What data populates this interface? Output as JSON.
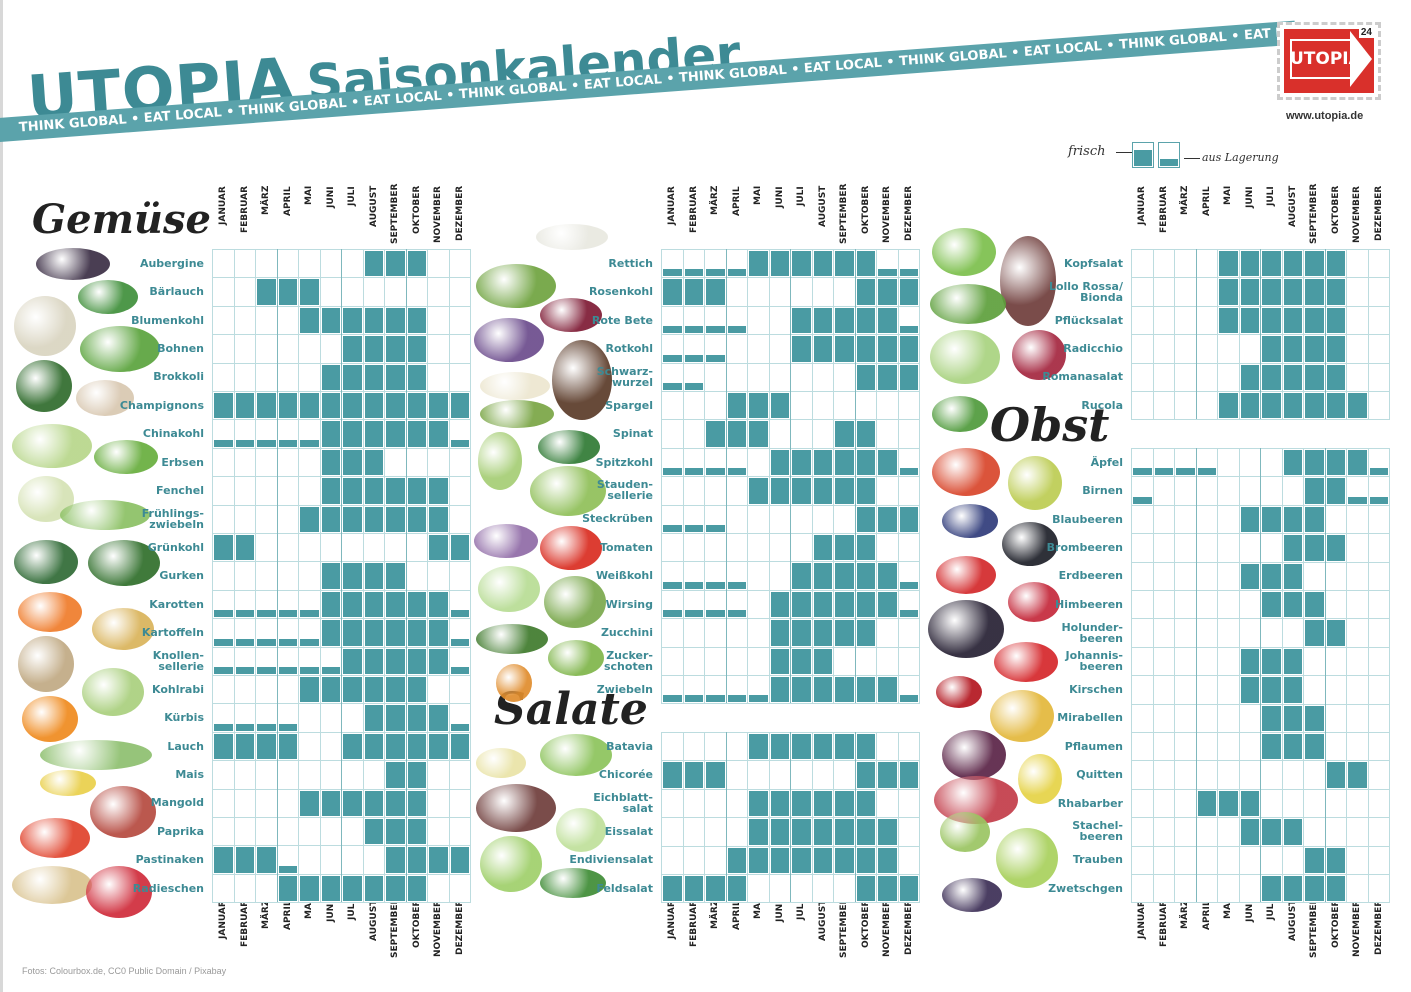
{
  "header": {
    "brand": "UTOPIA",
    "title": "Saisonkalender",
    "tagline": "THINK GLOBAL • EAT LOCAL • THINK GLOBAL • EAT LOCAL • THINK GLOBAL • EAT LOCAL • THINK GLOBAL • EAT LOCAL • THINK GLOBAL • EAT LOCAL • THINK GLOBAL • EAT LOCAL • THINK GLOBAL • EAT LOCAL • THINK GLOBAL • EAT LOCAL •",
    "stamp_label": "UTOPIA",
    "stamp_number": "24",
    "website": "www.utopia.de"
  },
  "legend": {
    "fresh": "frisch",
    "storage": "aus Lagerung"
  },
  "months": [
    "JANUAR",
    "FEBRUAR",
    "MÄRZ",
    "APRIL",
    "MAI",
    "JUNI",
    "JULI",
    "AUGUST",
    "SEPTEMBER",
    "OKTOBER",
    "NOVEMBER",
    "DEZEMBER"
  ],
  "sections": {
    "gemuese": {
      "title": "Gemüse",
      "items": [
        {
          "name": "Aubergine",
          "cells": [
            0,
            0,
            0,
            0,
            0,
            0,
            0,
            2,
            2,
            2,
            0,
            0
          ]
        },
        {
          "name": "Bärlauch",
          "cells": [
            0,
            0,
            2,
            2,
            2,
            0,
            0,
            0,
            0,
            0,
            0,
            0
          ]
        },
        {
          "name": "Blumenkohl",
          "cells": [
            0,
            0,
            0,
            0,
            2,
            2,
            2,
            2,
            2,
            2,
            0,
            0
          ]
        },
        {
          "name": "Bohnen",
          "cells": [
            0,
            0,
            0,
            0,
            0,
            0,
            2,
            2,
            2,
            2,
            0,
            0
          ]
        },
        {
          "name": "Brokkoli",
          "cells": [
            0,
            0,
            0,
            0,
            0,
            2,
            2,
            2,
            2,
            2,
            0,
            0
          ]
        },
        {
          "name": "Champignons",
          "cells": [
            2,
            2,
            2,
            2,
            2,
            2,
            2,
            2,
            2,
            2,
            2,
            2
          ]
        },
        {
          "name": "Chinakohl",
          "cells": [
            1,
            1,
            1,
            1,
            1,
            2,
            2,
            2,
            2,
            2,
            2,
            1
          ]
        },
        {
          "name": "Erbsen",
          "cells": [
            0,
            0,
            0,
            0,
            0,
            2,
            2,
            2,
            0,
            0,
            0,
            0
          ]
        },
        {
          "name": "Fenchel",
          "cells": [
            0,
            0,
            0,
            0,
            0,
            2,
            2,
            2,
            2,
            2,
            2,
            0
          ]
        },
        {
          "name": "Frühlings-\nzwiebeln",
          "cells": [
            0,
            0,
            0,
            0,
            2,
            2,
            2,
            2,
            2,
            2,
            2,
            0
          ]
        },
        {
          "name": "Grünkohl",
          "cells": [
            2,
            2,
            0,
            0,
            0,
            0,
            0,
            0,
            0,
            0,
            2,
            2
          ]
        },
        {
          "name": "Gurken",
          "cells": [
            0,
            0,
            0,
            0,
            0,
            2,
            2,
            2,
            2,
            0,
            0,
            0
          ]
        },
        {
          "name": "Karotten",
          "cells": [
            1,
            1,
            1,
            1,
            1,
            2,
            2,
            2,
            2,
            2,
            2,
            1
          ]
        },
        {
          "name": "Kartoffeln",
          "cells": [
            1,
            1,
            1,
            1,
            1,
            2,
            2,
            2,
            2,
            2,
            2,
            1
          ]
        },
        {
          "name": "Knollen-\nsellerie",
          "cells": [
            1,
            1,
            1,
            1,
            1,
            1,
            2,
            2,
            2,
            2,
            2,
            1
          ]
        },
        {
          "name": "Kohlrabi",
          "cells": [
            0,
            0,
            0,
            0,
            2,
            2,
            2,
            2,
            2,
            2,
            0,
            0
          ]
        },
        {
          "name": "Kürbis",
          "cells": [
            1,
            1,
            1,
            1,
            0,
            0,
            0,
            2,
            2,
            2,
            2,
            1
          ]
        },
        {
          "name": "Lauch",
          "cells": [
            2,
            2,
            2,
            2,
            0,
            0,
            2,
            2,
            2,
            2,
            2,
            2
          ]
        },
        {
          "name": "Mais",
          "cells": [
            0,
            0,
            0,
            0,
            0,
            0,
            0,
            0,
            2,
            2,
            0,
            0
          ]
        },
        {
          "name": "Mangold",
          "cells": [
            0,
            0,
            0,
            0,
            2,
            2,
            2,
            2,
            2,
            2,
            0,
            0
          ]
        },
        {
          "name": "Paprika",
          "cells": [
            0,
            0,
            0,
            0,
            0,
            0,
            0,
            2,
            2,
            2,
            0,
            0
          ]
        },
        {
          "name": "Pastinaken",
          "cells": [
            2,
            2,
            2,
            1,
            0,
            0,
            0,
            0,
            2,
            2,
            2,
            2
          ]
        },
        {
          "name": "Radieschen",
          "cells": [
            0,
            0,
            0,
            2,
            2,
            2,
            2,
            2,
            2,
            2,
            0,
            0
          ]
        }
      ]
    },
    "mitte": {
      "items": [
        {
          "name": "Rettich",
          "cells": [
            1,
            1,
            1,
            1,
            2,
            2,
            2,
            2,
            2,
            2,
            1,
            1
          ]
        },
        {
          "name": "Rosenkohl",
          "cells": [
            2,
            2,
            2,
            0,
            0,
            0,
            0,
            0,
            0,
            2,
            2,
            2
          ]
        },
        {
          "name": "Rote Bete",
          "cells": [
            1,
            1,
            1,
            1,
            0,
            0,
            2,
            2,
            2,
            2,
            2,
            1
          ]
        },
        {
          "name": "Rotkohl",
          "cells": [
            1,
            1,
            1,
            0,
            0,
            0,
            2,
            2,
            2,
            2,
            2,
            2
          ]
        },
        {
          "name": "Schwarz-\nwurzel",
          "cells": [
            1,
            1,
            0,
            0,
            0,
            0,
            0,
            0,
            0,
            2,
            2,
            2
          ]
        },
        {
          "name": "Spargel",
          "cells": [
            0,
            0,
            0,
            2,
            2,
            2,
            0,
            0,
            0,
            0,
            0,
            0
          ]
        },
        {
          "name": "Spinat",
          "cells": [
            0,
            0,
            2,
            2,
            2,
            0,
            0,
            0,
            2,
            2,
            0,
            0
          ]
        },
        {
          "name": "Spitzkohl",
          "cells": [
            1,
            1,
            1,
            1,
            0,
            2,
            2,
            2,
            2,
            2,
            2,
            1
          ]
        },
        {
          "name": "Stauden-\nsellerie",
          "cells": [
            0,
            0,
            0,
            0,
            2,
            2,
            2,
            2,
            2,
            2,
            0,
            0
          ]
        },
        {
          "name": "Steckrüben",
          "cells": [
            1,
            1,
            1,
            0,
            0,
            0,
            0,
            0,
            0,
            2,
            2,
            2
          ]
        },
        {
          "name": "Tomaten",
          "cells": [
            0,
            0,
            0,
            0,
            0,
            0,
            0,
            2,
            2,
            2,
            0,
            0
          ]
        },
        {
          "name": "Weißkohl",
          "cells": [
            1,
            1,
            1,
            1,
            0,
            0,
            2,
            2,
            2,
            2,
            2,
            1
          ]
        },
        {
          "name": "Wirsing",
          "cells": [
            1,
            1,
            1,
            1,
            0,
            2,
            2,
            2,
            2,
            2,
            2,
            1
          ]
        },
        {
          "name": "Zucchini",
          "cells": [
            0,
            0,
            0,
            0,
            0,
            2,
            2,
            2,
            2,
            2,
            0,
            0
          ]
        },
        {
          "name": "Zucker-\nschoten",
          "cells": [
            0,
            0,
            0,
            0,
            0,
            2,
            2,
            2,
            0,
            0,
            0,
            0
          ]
        },
        {
          "name": "Zwiebeln",
          "cells": [
            1,
            1,
            1,
            1,
            1,
            2,
            2,
            2,
            2,
            2,
            2,
            1
          ]
        }
      ]
    },
    "salate": {
      "title": "Salate",
      "items": [
        {
          "name": "Batavia",
          "cells": [
            0,
            0,
            0,
            0,
            2,
            2,
            2,
            2,
            2,
            2,
            0,
            0
          ]
        },
        {
          "name": "Chicorée",
          "cells": [
            2,
            2,
            2,
            0,
            0,
            0,
            0,
            0,
            0,
            2,
            2,
            2
          ]
        },
        {
          "name": "Eichblatt-\nsalat",
          "cells": [
            0,
            0,
            0,
            0,
            2,
            2,
            2,
            2,
            2,
            2,
            0,
            0
          ]
        },
        {
          "name": "Eissalat",
          "cells": [
            0,
            0,
            0,
            0,
            2,
            2,
            2,
            2,
            2,
            2,
            2,
            0
          ]
        },
        {
          "name": "Endiviensalat",
          "cells": [
            0,
            0,
            0,
            2,
            2,
            2,
            2,
            2,
            2,
            2,
            2,
            0
          ]
        },
        {
          "name": "Feldsalat",
          "cells": [
            2,
            2,
            2,
            2,
            0,
            0,
            0,
            0,
            0,
            2,
            2,
            2
          ]
        }
      ]
    },
    "rechts_salate": {
      "items": [
        {
          "name": "Kopfsalat",
          "cells": [
            0,
            0,
            0,
            0,
            2,
            2,
            2,
            2,
            2,
            2,
            0,
            0
          ]
        },
        {
          "name": "Lollo Rossa/\nBionda",
          "cells": [
            0,
            0,
            0,
            0,
            2,
            2,
            2,
            2,
            2,
            2,
            0,
            0
          ]
        },
        {
          "name": "Pflücksalat",
          "cells": [
            0,
            0,
            0,
            0,
            2,
            2,
            2,
            2,
            2,
            2,
            0,
            0
          ]
        },
        {
          "name": "Radicchio",
          "cells": [
            0,
            0,
            0,
            0,
            0,
            0,
            2,
            2,
            2,
            2,
            0,
            0
          ]
        },
        {
          "name": "Romanasalat",
          "cells": [
            0,
            0,
            0,
            0,
            0,
            2,
            2,
            2,
            2,
            2,
            0,
            0
          ]
        },
        {
          "name": "Rucola",
          "cells": [
            0,
            0,
            0,
            0,
            2,
            2,
            2,
            2,
            2,
            2,
            2,
            0
          ]
        }
      ]
    },
    "obst": {
      "title": "Obst",
      "items": [
        {
          "name": "Äpfel",
          "cells": [
            1,
            1,
            1,
            1,
            0,
            0,
            0,
            2,
            2,
            2,
            2,
            1
          ]
        },
        {
          "name": "Birnen",
          "cells": [
            1,
            0,
            0,
            0,
            0,
            0,
            0,
            0,
            2,
            3,
            1,
            1
          ]
        },
        {
          "name": "Blaubeeren",
          "cells": [
            0,
            0,
            0,
            0,
            0,
            2,
            2,
            2,
            2,
            0,
            0,
            0
          ]
        },
        {
          "name": "Brombeeren",
          "cells": [
            0,
            0,
            0,
            0,
            0,
            0,
            0,
            2,
            2,
            2,
            0,
            0
          ]
        },
        {
          "name": "Erdbeeren",
          "cells": [
            0,
            0,
            0,
            0,
            0,
            2,
            2,
            2,
            0,
            0,
            0,
            0
          ]
        },
        {
          "name": "Himbeeren",
          "cells": [
            0,
            0,
            0,
            0,
            0,
            0,
            2,
            2,
            2,
            0,
            0,
            0
          ]
        },
        {
          "name": "Holunder-\nbeeren",
          "cells": [
            0,
            0,
            0,
            0,
            0,
            0,
            0,
            0,
            2,
            2,
            0,
            0
          ]
        },
        {
          "name": "Johannis-\nbeeren",
          "cells": [
            0,
            0,
            0,
            0,
            0,
            2,
            2,
            2,
            0,
            0,
            0,
            0
          ]
        },
        {
          "name": "Kirschen",
          "cells": [
            0,
            0,
            0,
            0,
            0,
            2,
            2,
            2,
            0,
            0,
            0,
            0
          ]
        },
        {
          "name": "Mirabellen",
          "cells": [
            0,
            0,
            0,
            0,
            0,
            0,
            2,
            2,
            2,
            0,
            0,
            0
          ]
        },
        {
          "name": "Pflaumen",
          "cells": [
            0,
            0,
            0,
            0,
            0,
            0,
            2,
            2,
            2,
            0,
            0,
            0
          ]
        },
        {
          "name": "Quitten",
          "cells": [
            0,
            0,
            0,
            0,
            0,
            0,
            0,
            0,
            0,
            2,
            2,
            0
          ]
        },
        {
          "name": "Rhabarber",
          "cells": [
            0,
            0,
            0,
            2,
            2,
            2,
            0,
            0,
            0,
            0,
            0,
            0
          ]
        },
        {
          "name": "Stachel-\nbeeren",
          "cells": [
            0,
            0,
            0,
            0,
            0,
            2,
            2,
            2,
            0,
            0,
            0,
            0
          ]
        },
        {
          "name": "Trauben",
          "cells": [
            0,
            0,
            0,
            0,
            0,
            0,
            0,
            0,
            2,
            2,
            0,
            0
          ]
        },
        {
          "name": "Zwetschgen",
          "cells": [
            0,
            0,
            0,
            0,
            0,
            0,
            2,
            2,
            2,
            2,
            0,
            0
          ]
        }
      ]
    }
  },
  "colors": {
    "teal": "#4a9ba3",
    "label": "#3d8a94",
    "grid_line": "#bcdcdf",
    "stamp_red": "#d9302b"
  },
  "credit": "Fotos: Colourbox.de, CC0 Public Domain / Pixabay"
}
